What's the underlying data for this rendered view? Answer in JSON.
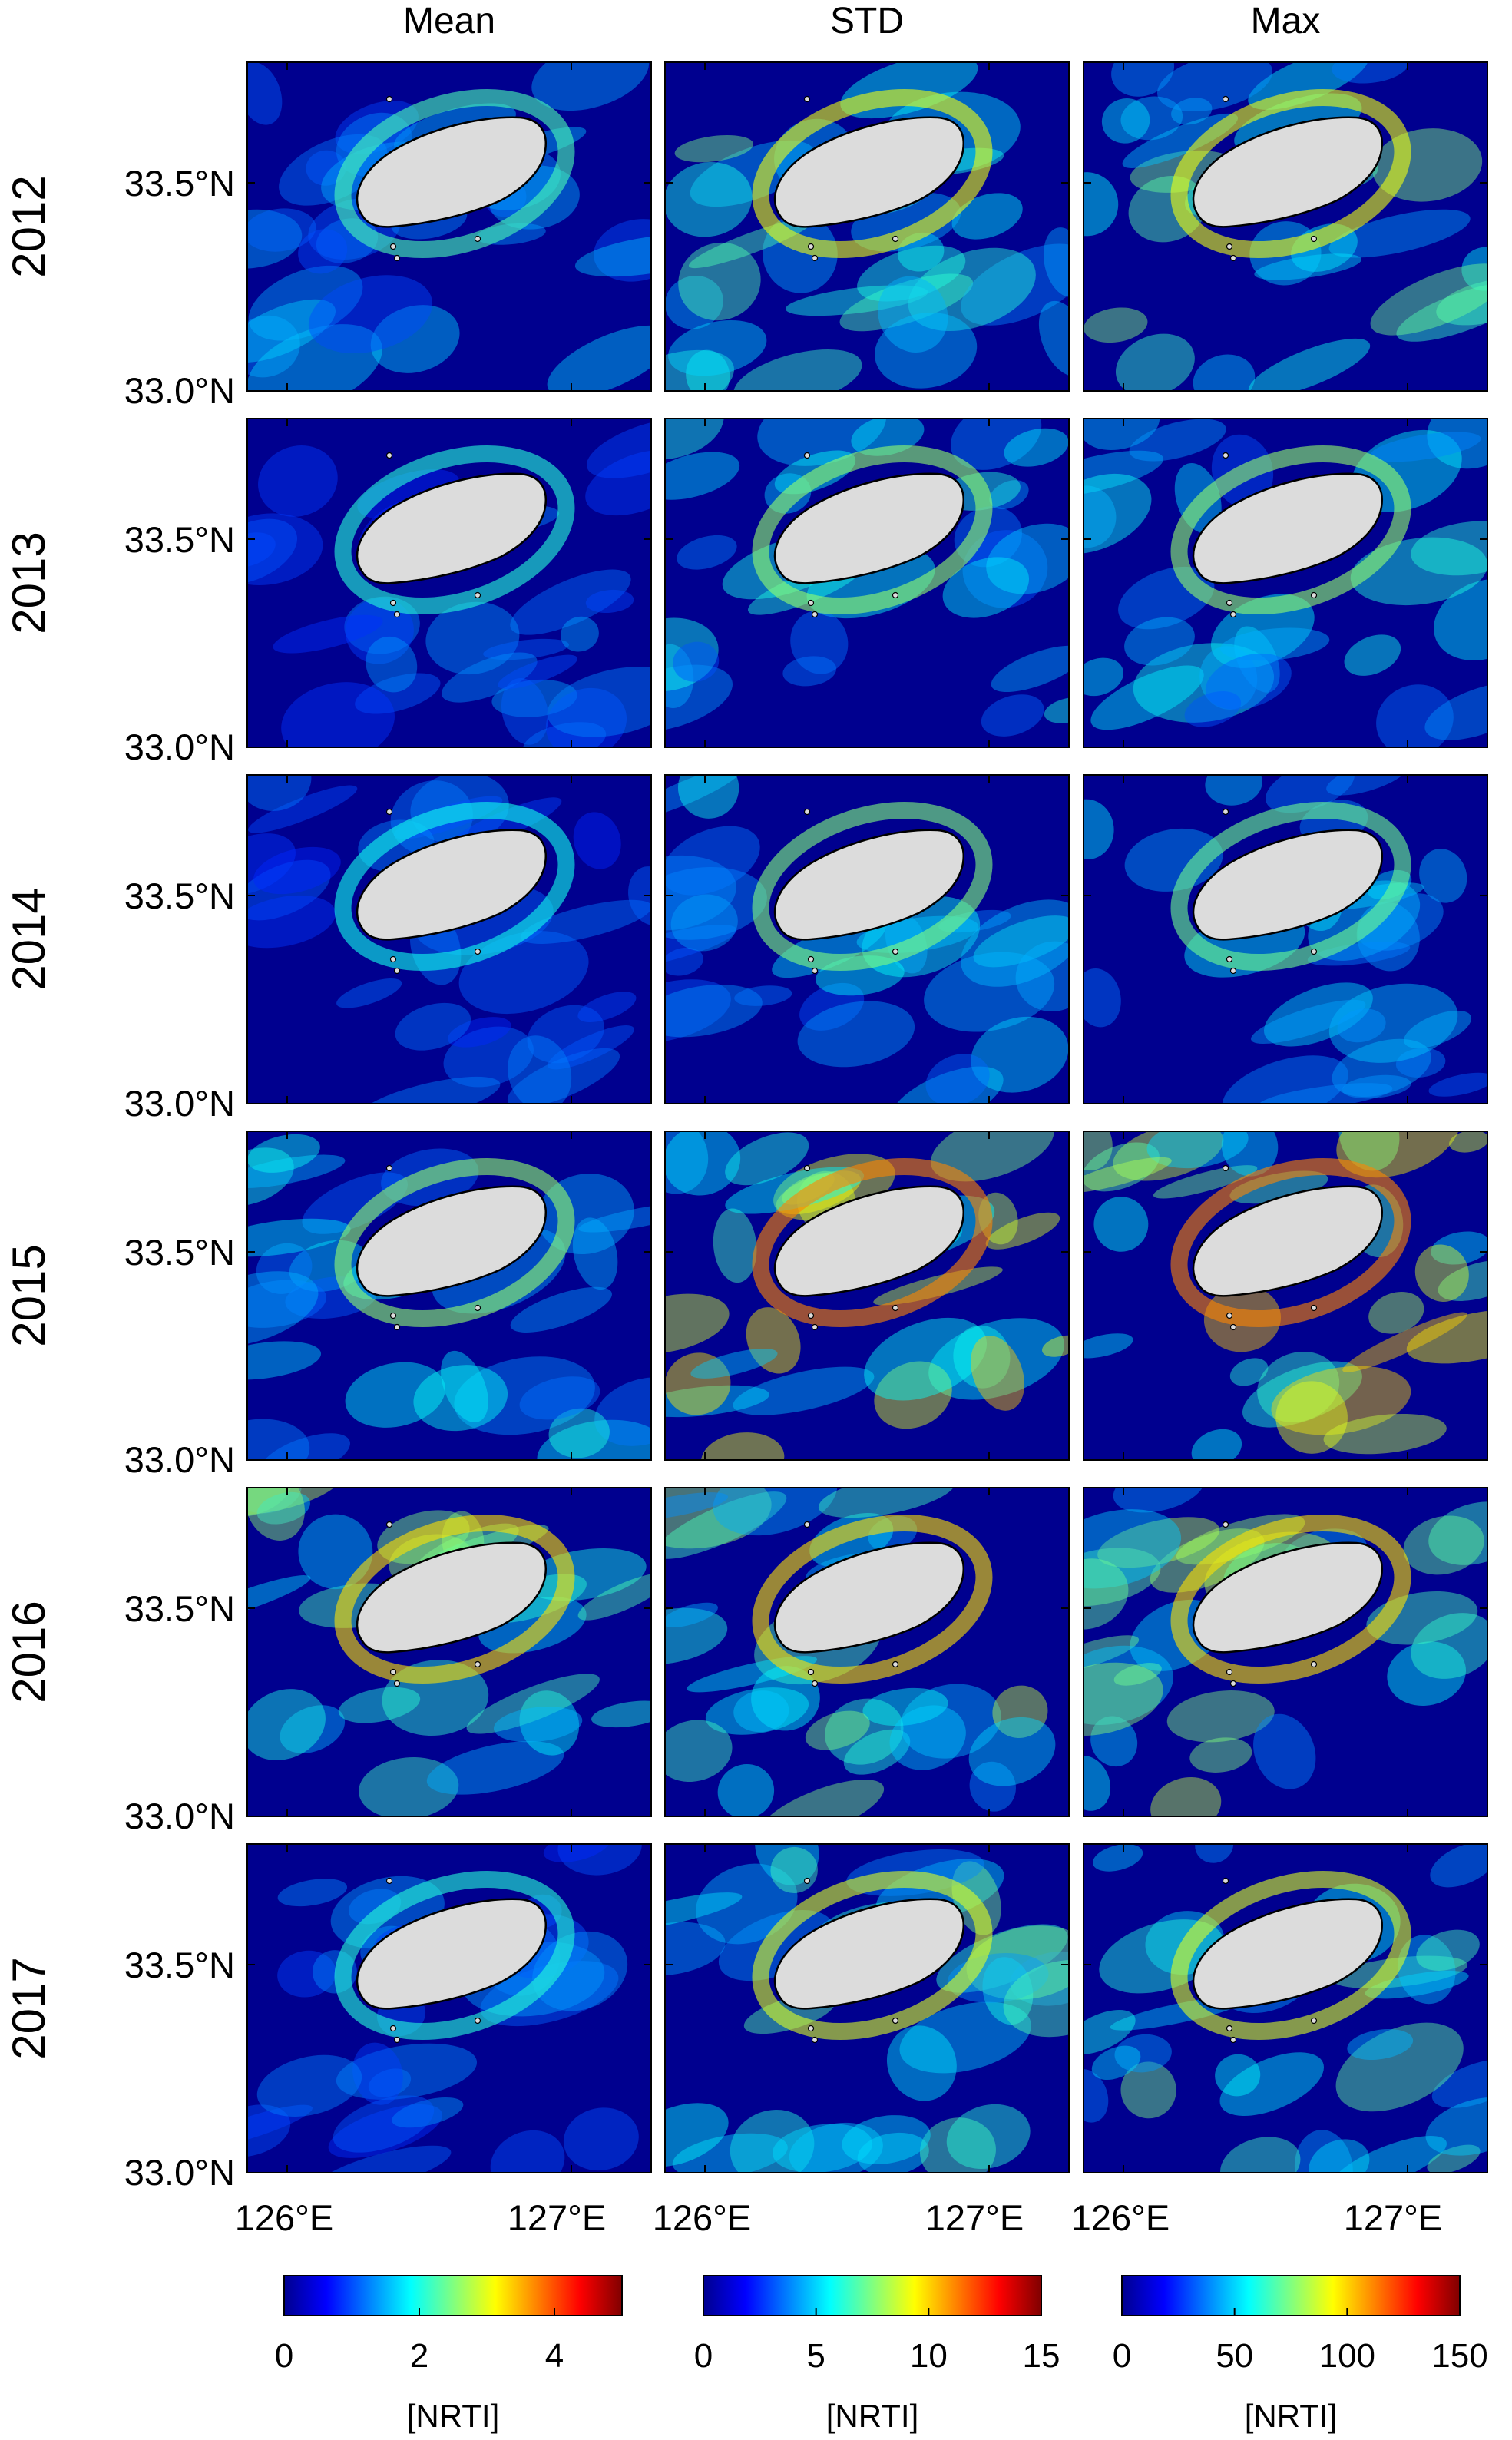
{
  "columns": [
    {
      "title": "Mean",
      "colorbar_ticks": [
        "0",
        "2",
        "4"
      ],
      "colorbar_label": "[NRTI]",
      "colorbar_range": [
        0,
        5
      ]
    },
    {
      "title": "STD",
      "colorbar_ticks": [
        "0",
        "5",
        "10",
        "15"
      ],
      "colorbar_label": "[NRTI]",
      "colorbar_range": [
        0,
        15
      ]
    },
    {
      "title": "Max",
      "colorbar_ticks": [
        "0",
        "50",
        "100",
        "150"
      ],
      "colorbar_label": "[NRTI]",
      "colorbar_range": [
        0,
        150
      ]
    }
  ],
  "years": [
    "2012",
    "2013",
    "2014",
    "2015",
    "2016",
    "2017"
  ],
  "lat_labels": [
    "33.5°N",
    "33.0°N"
  ],
  "lon_labels": [
    "126°E",
    "127°E"
  ],
  "colormap": [
    "#00008f",
    "#0000ff",
    "#0080ff",
    "#00ffff",
    "#80ff80",
    "#ffff00",
    "#ff8000",
    "#ff0000",
    "#800000"
  ],
  "land_color": "#dcdcdc",
  "ocean_intensity": [
    [
      0.22,
      0.4,
      0.4
    ],
    [
      0.18,
      0.3,
      0.3
    ],
    [
      0.16,
      0.28,
      0.26
    ],
    [
      0.3,
      0.55,
      0.55
    ],
    [
      0.45,
      0.45,
      0.45
    ],
    [
      0.18,
      0.38,
      0.38
    ]
  ]
}
